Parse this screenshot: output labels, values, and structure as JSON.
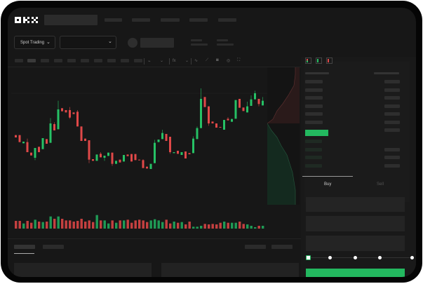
{
  "header": {
    "logo": "OKX",
    "nav_items": 5
  },
  "toolbar": {
    "market_selector": "Spot Trading",
    "market_selector_icon": "chevron-down-icon",
    "pair_selector_icon": "chevron-down-icon",
    "tools": [
      "line-icon",
      "ruler-icon",
      "camera-icon",
      "settings-icon",
      "fullscreen-icon"
    ]
  },
  "order_form": {
    "tabs": [
      {
        "label": "Buy",
        "active": true
      },
      {
        "label": "Sell",
        "active": false
      }
    ],
    "slider_percent": 0,
    "slider_marks": [
      0,
      25,
      50,
      75,
      100
    ]
  },
  "colors": {
    "up": "#26c165",
    "down": "#e04848",
    "background": "#171717",
    "accent": "#23b85f"
  },
  "chart_data": {
    "type": "candlestick",
    "candles": [
      [
        185,
        175,
        185,
        175
      ],
      [
        185,
        155,
        185,
        155
      ],
      [
        150,
        157,
        157,
        150
      ],
      [
        155,
        112,
        170,
        112
      ],
      [
        110,
        98,
        110,
        98
      ],
      [
        88,
        130,
        130,
        78
      ],
      [
        135,
        112,
        135,
        112
      ],
      [
        125,
        172,
        172,
        125
      ],
      [
        168,
        148,
        168,
        148
      ],
      [
        152,
        235,
        258,
        152
      ],
      [
        232,
        205,
        240,
        205
      ],
      [
        210,
        295,
        332,
        210
      ],
      [
        300,
        287,
        300,
        287
      ],
      [
        292,
        282,
        292,
        282
      ],
      [
        292,
        260,
        305,
        255
      ],
      [
        282,
        275,
        282,
        275
      ],
      [
        285,
        222,
        292,
        222
      ],
      [
        222,
        160,
        222,
        160
      ],
      [
        170,
        160,
        170,
        160
      ],
      [
        163,
        80,
        163,
        65
      ],
      [
        82,
        75,
        82,
        75
      ],
      [
        75,
        102,
        102,
        75
      ],
      [
        105,
        90,
        112,
        90
      ],
      [
        88,
        97,
        97,
        75
      ],
      [
        96,
        110,
        110,
        96
      ],
      [
        110,
        62,
        110,
        53
      ],
      [
        62,
        75,
        75,
        62
      ],
      [
        80,
        68,
        80,
        68
      ],
      [
        72,
        100,
        100,
        72
      ],
      [
        102,
        95,
        102,
        95
      ],
      [
        104,
        72,
        104,
        72
      ],
      [
        104,
        78,
        104,
        78
      ],
      [
        80,
        78,
        80,
        78
      ],
      [
        78,
        44,
        82,
        44
      ],
      [
        50,
        42,
        50,
        42
      ],
      [
        40,
        62,
        62,
        40
      ],
      [
        65,
        152,
        165,
        65
      ],
      [
        155,
        166,
        166,
        155
      ],
      [
        168,
        194,
        208,
        168
      ],
      [
        190,
        160,
        190,
        160
      ],
      [
        178,
        112,
        178,
        105
      ],
      [
        108,
        112,
        112,
        108
      ],
      [
        118,
        105,
        118,
        105
      ],
      [
        100,
        112,
        112,
        100
      ],
      [
        115,
        85,
        115,
        85
      ],
      [
        108,
        103,
        108,
        103
      ],
      [
        108,
        170,
        180,
        108
      ],
      [
        168,
        215,
        222,
        168
      ],
      [
        215,
        340,
        385,
        215
      ],
      [
        348,
        305,
        348,
        305
      ],
      [
        308,
        235,
        308,
        225
      ],
      [
        243,
        235,
        243,
        235
      ],
      [
        235,
        217,
        235,
        217
      ],
      [
        220,
        217,
        220,
        217
      ],
      [
        208,
        250,
        250,
        208
      ],
      [
        255,
        248,
        262,
        248
      ],
      [
        242,
        254,
        254,
        242
      ],
      [
        255,
        335,
        335,
        255
      ],
      [
        340,
        302,
        340,
        302
      ],
      [
        303,
        288,
        303,
        288
      ],
      [
        282,
        308,
        328,
        282
      ],
      [
        310,
        338,
        355,
        310
      ],
      [
        338,
        364,
        375,
        338
      ],
      [
        340,
        318,
        340,
        308
      ],
      [
        312,
        332,
        348,
        312
      ]
    ],
    "volumes": [
      33,
      33,
      22,
      33,
      25,
      38,
      30,
      28,
      30,
      52,
      42,
      52,
      42,
      35,
      35,
      30,
      33,
      42,
      30,
      35,
      28,
      58,
      35,
      35,
      22,
      35,
      25,
      35,
      35,
      38,
      25,
      35,
      38,
      35,
      28,
      35,
      40,
      35,
      28,
      38,
      22,
      30,
      25,
      28,
      18,
      30,
      8,
      8,
      12,
      20,
      18,
      20,
      18,
      25,
      30,
      25,
      25,
      25,
      30,
      20,
      18,
      12,
      6,
      12,
      12
    ]
  }
}
